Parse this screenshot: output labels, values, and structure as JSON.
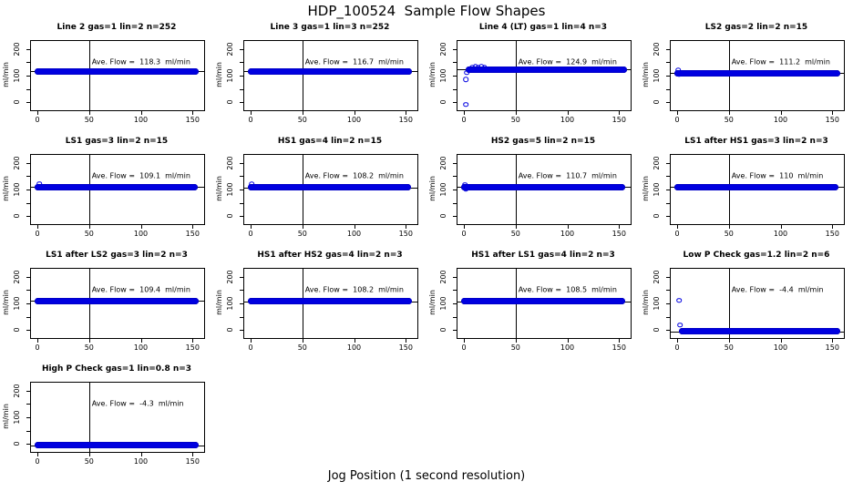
{
  "chart_data": {
    "type": "scatter",
    "title": "HDP_100524  Sample Flow Shapes",
    "xlabel": "Jog Position (1 second resolution)",
    "ylabel": "ml/min",
    "grid_layout": {
      "rows": 4,
      "cols": 4,
      "panel_count": 13
    },
    "x_ticks": [
      0,
      50,
      100,
      150
    ],
    "y_ticks": [
      0,
      100,
      200
    ],
    "y_minor_ticks": [
      50,
      150
    ],
    "xlim": [
      -6.2,
      161.2
    ],
    "ylim": [
      -29.6,
      229.6
    ],
    "vline_x": 50,
    "point_color": "#0000e0",
    "annotation_y": 152,
    "panels": [
      {
        "title": "Line 2 gas=1 lin=2 n=252",
        "ave_flow": 118.3,
        "annotation": "Ave. Flow =  118.3  ml/min",
        "band": {
          "y": 117,
          "x_start": 0,
          "x_end": 153
        },
        "outliers": [],
        "sparse": false
      },
      {
        "title": "Line 3 gas=1 lin=3 n=252",
        "ave_flow": 116.7,
        "annotation": "Ave. Flow =  116.7  ml/min",
        "band": {
          "y": 115,
          "x_start": 0,
          "x_end": 153
        },
        "outliers": [],
        "sparse": false
      },
      {
        "title": "Line 4 (LT) gas=1 lin=4 n=3",
        "ave_flow": 124.9,
        "annotation": "Ave. Flow =  124.9  ml/min",
        "band": {
          "y": 122,
          "x_start": 4,
          "x_end": 155
        },
        "outliers": [
          [
            2,
            -8
          ],
          [
            2,
            85
          ],
          [
            3,
            112
          ],
          [
            8,
            130
          ],
          [
            11,
            133
          ],
          [
            14,
            131
          ],
          [
            17,
            133
          ],
          [
            20,
            130
          ]
        ],
        "sparse": false
      },
      {
        "title": "LS2 gas=2 lin=2 n=15",
        "ave_flow": 111.2,
        "annotation": "Ave. Flow =  111.2  ml/min",
        "band": {
          "y": 110,
          "x_start": 0,
          "x_end": 155
        },
        "outliers": [
          [
            1,
            119
          ],
          [
            2,
            112
          ],
          [
            2,
            104
          ]
        ],
        "sparse": false
      },
      {
        "title": "LS1 gas=3 lin=2 n=15",
        "ave_flow": 109.1,
        "annotation": "Ave. Flow =  109.1  ml/min",
        "band": {
          "y": 109,
          "x_start": 0,
          "x_end": 152
        },
        "outliers": [
          [
            2,
            121
          ]
        ],
        "sparse": false
      },
      {
        "title": "HS1 gas=4 lin=2 n=15",
        "ave_flow": 108.2,
        "annotation": "Ave. Flow =  108.2  ml/min",
        "band": {
          "y": 108,
          "x_start": 0,
          "x_end": 152
        },
        "outliers": [
          [
            1,
            120
          ]
        ],
        "sparse": false
      },
      {
        "title": "HS2 gas=5 lin=2 n=15",
        "ave_flow": 110.7,
        "annotation": "Ave. Flow =  110.7  ml/min",
        "band": {
          "y": 110,
          "x_start": 0,
          "x_end": 153
        },
        "outliers": [
          [
            1,
            118
          ],
          [
            2,
            103
          ]
        ],
        "sparse": false
      },
      {
        "title": "LS1 after HS1 gas=3 lin=2 n=3",
        "ave_flow": 110,
        "annotation": "Ave. Flow =  110  ml/min",
        "band": {
          "y": 109,
          "x_start": 0,
          "x_end": 153
        },
        "outliers": [],
        "sparse": true
      },
      {
        "title": "LS1 after LS2 gas=3 lin=2 n=3",
        "ave_flow": 109.4,
        "annotation": "Ave. Flow =  109.4  ml/min",
        "band": {
          "y": 108,
          "x_start": 0,
          "x_end": 153
        },
        "outliers": [],
        "sparse": false
      },
      {
        "title": "HS1 after HS2 gas=4 lin=2 n=3",
        "ave_flow": 108.2,
        "annotation": "Ave. Flow =  108.2  ml/min",
        "band": {
          "y": 107,
          "x_start": 0,
          "x_end": 153
        },
        "outliers": [],
        "sparse": true
      },
      {
        "title": "HS1 after LS1 gas=4 lin=2 n=3",
        "ave_flow": 108.5,
        "annotation": "Ave. Flow =  108.5  ml/min",
        "band": {
          "y": 107,
          "x_start": 0,
          "x_end": 153
        },
        "outliers": [],
        "sparse": false
      },
      {
        "title": "Low P Check gas=1.2 lin=2 n=6",
        "ave_flow": -4.4,
        "annotation": "Ave. Flow =  -4.4  ml/min",
        "band": {
          "y": -5,
          "x_start": 4,
          "x_end": 155
        },
        "outliers": [
          [
            2,
            112
          ],
          [
            3,
            20
          ]
        ],
        "sparse": false
      },
      {
        "title": "High P Check gas=1 lin=0.8 n=3",
        "ave_flow": -4.3,
        "annotation": "Ave. Flow =  -4.3  ml/min",
        "band": {
          "y": -5,
          "x_start": 0,
          "x_end": 153
        },
        "outliers": [],
        "sparse": false
      }
    ]
  }
}
